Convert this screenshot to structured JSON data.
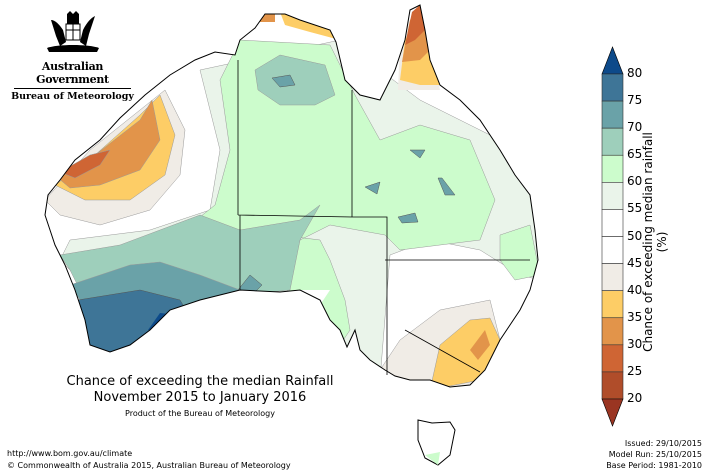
{
  "logo": {
    "government": "Australian Government",
    "agency": "Bureau of Meteorology"
  },
  "title": {
    "line1": "Chance of exceeding the median Rainfall",
    "line2": "November 2015 to January 2016",
    "product": "Product of the Bureau of Meteorology"
  },
  "footer": {
    "url": "http://www.bom.gov.au/climate",
    "copyright": "© Commonwealth of Australia 2015, Australian Bureau of Meteorology",
    "issued": "Issued: 29/10/2015",
    "model_run": "Model Run: 25/10/2015",
    "base_period": "Base Period: 1981-2010"
  },
  "colorbar": {
    "label": "Chance of exceeding median rainfall (%)",
    "ticks": [
      "80",
      "75",
      "70",
      "65",
      "60",
      "55",
      "50",
      "45",
      "40",
      "35",
      "30",
      "25",
      "20"
    ],
    "bands": [
      "#3e7597",
      "#6aa2a8",
      "#9ecfbb",
      "#ccfccc",
      "#eaf4ea",
      "#ffffff",
      "#ffffff",
      "#f0ece6",
      "#fdcd66",
      "#e2944a",
      "#cf6534",
      "#b04d2a"
    ],
    "over_color": "#0d4a8a",
    "under_color": "#9a3522"
  }
}
